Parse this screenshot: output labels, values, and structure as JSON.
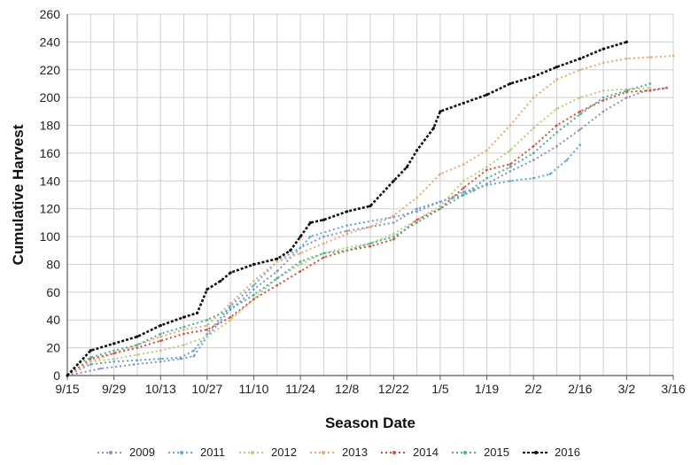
{
  "chart_data": {
    "type": "line",
    "title": "",
    "xlabel": "Season Date",
    "ylabel": "Cumulative Harvest",
    "x_tick_labels": [
      "9/15",
      "9/29",
      "10/13",
      "10/27",
      "11/10",
      "11/24",
      "12/8",
      "12/22",
      "1/5",
      "1/19",
      "2/2",
      "2/16",
      "3/2",
      "3/16"
    ],
    "x_tick_days": [
      0,
      14,
      28,
      42,
      56,
      70,
      84,
      98,
      112,
      126,
      140,
      154,
      168,
      182
    ],
    "xlim": [
      0,
      182
    ],
    "ylim": [
      0,
      260
    ],
    "y_ticks": [
      0,
      20,
      40,
      60,
      80,
      100,
      120,
      140,
      160,
      180,
      200,
      220,
      240,
      260
    ],
    "grid": true,
    "x_minor_grid_step_days": 7,
    "legend_position": "bottom",
    "series": [
      {
        "name": "2009",
        "color": "#8b8fc9",
        "dash": "2,3",
        "points": [
          [
            0,
            0
          ],
          [
            10,
            5
          ],
          [
            20,
            8
          ],
          [
            28,
            10
          ],
          [
            34,
            12
          ],
          [
            38,
            14
          ],
          [
            42,
            28
          ],
          [
            48,
            45
          ],
          [
            56,
            62
          ],
          [
            63,
            75
          ],
          [
            70,
            92
          ],
          [
            77,
            100
          ],
          [
            84,
            104
          ],
          [
            91,
            107
          ],
          [
            98,
            110
          ],
          [
            105,
            120
          ],
          [
            112,
            125
          ],
          [
            119,
            130
          ],
          [
            122,
            133
          ],
          [
            126,
            138
          ],
          [
            133,
            147
          ],
          [
            140,
            155
          ],
          [
            147,
            165
          ],
          [
            154,
            177
          ],
          [
            161,
            190
          ],
          [
            168,
            200
          ],
          [
            174,
            205
          ],
          [
            180,
            207
          ]
        ]
      },
      {
        "name": "2011",
        "color": "#5aa9d6",
        "dash": "2,3",
        "points": [
          [
            0,
            0
          ],
          [
            7,
            8
          ],
          [
            14,
            10
          ],
          [
            21,
            11
          ],
          [
            28,
            12
          ],
          [
            34,
            13
          ],
          [
            38,
            18
          ],
          [
            42,
            30
          ],
          [
            49,
            50
          ],
          [
            56,
            65
          ],
          [
            63,
            82
          ],
          [
            70,
            92
          ],
          [
            73,
            100
          ],
          [
            84,
            108
          ],
          [
            98,
            114
          ],
          [
            105,
            118
          ],
          [
            112,
            125
          ],
          [
            119,
            132
          ],
          [
            126,
            137
          ],
          [
            133,
            140
          ],
          [
            140,
            142
          ],
          [
            145,
            145
          ],
          [
            150,
            155
          ],
          [
            154,
            166
          ]
        ]
      },
      {
        "name": "2012",
        "color": "#b5cf72",
        "dash": "2,3",
        "points": [
          [
            0,
            0
          ],
          [
            7,
            10
          ],
          [
            14,
            12
          ],
          [
            21,
            15
          ],
          [
            28,
            18
          ],
          [
            35,
            22
          ],
          [
            42,
            28
          ],
          [
            49,
            40
          ],
          [
            56,
            55
          ],
          [
            63,
            70
          ],
          [
            70,
            80
          ],
          [
            77,
            88
          ],
          [
            84,
            92
          ],
          [
            91,
            95
          ],
          [
            98,
            102
          ],
          [
            105,
            112
          ],
          [
            112,
            122
          ],
          [
            119,
            140
          ],
          [
            126,
            150
          ],
          [
            133,
            162
          ],
          [
            140,
            178
          ],
          [
            147,
            192
          ],
          [
            154,
            200
          ],
          [
            161,
            205
          ],
          [
            168,
            206
          ],
          [
            175,
            207
          ]
        ]
      },
      {
        "name": "2013",
        "color": "#f0a868",
        "dash": "2,3",
        "points": [
          [
            0,
            0
          ],
          [
            7,
            10
          ],
          [
            14,
            16
          ],
          [
            21,
            22
          ],
          [
            28,
            28
          ],
          [
            35,
            33
          ],
          [
            42,
            36
          ],
          [
            49,
            52
          ],
          [
            56,
            68
          ],
          [
            63,
            82
          ],
          [
            70,
            88
          ],
          [
            77,
            95
          ],
          [
            84,
            102
          ],
          [
            91,
            107
          ],
          [
            98,
            115
          ],
          [
            105,
            128
          ],
          [
            112,
            145
          ],
          [
            119,
            152
          ],
          [
            126,
            162
          ],
          [
            133,
            180
          ],
          [
            140,
            200
          ],
          [
            147,
            213
          ],
          [
            154,
            220
          ],
          [
            161,
            225
          ],
          [
            168,
            228
          ],
          [
            175,
            229
          ],
          [
            182,
            230
          ]
        ]
      },
      {
        "name": "2014",
        "color": "#e04a3a",
        "dash": "2,3",
        "points": [
          [
            0,
            0
          ],
          [
            7,
            12
          ],
          [
            14,
            16
          ],
          [
            21,
            20
          ],
          [
            28,
            25
          ],
          [
            35,
            30
          ],
          [
            42,
            33
          ],
          [
            49,
            42
          ],
          [
            56,
            55
          ],
          [
            63,
            65
          ],
          [
            70,
            75
          ],
          [
            77,
            85
          ],
          [
            84,
            90
          ],
          [
            91,
            93
          ],
          [
            98,
            98
          ],
          [
            105,
            112
          ],
          [
            112,
            120
          ],
          [
            119,
            135
          ],
          [
            126,
            148
          ],
          [
            133,
            152
          ],
          [
            140,
            165
          ],
          [
            147,
            180
          ],
          [
            154,
            190
          ],
          [
            161,
            198
          ],
          [
            168,
            204
          ],
          [
            175,
            205
          ],
          [
            180,
            207
          ]
        ]
      },
      {
        "name": "2015",
        "color": "#3fb595",
        "dash": "2,3",
        "points": [
          [
            0,
            0
          ],
          [
            3,
            8
          ],
          [
            7,
            13
          ],
          [
            14,
            18
          ],
          [
            21,
            22
          ],
          [
            28,
            30
          ],
          [
            35,
            35
          ],
          [
            42,
            40
          ],
          [
            49,
            48
          ],
          [
            56,
            58
          ],
          [
            63,
            70
          ],
          [
            70,
            82
          ],
          [
            77,
            88
          ],
          [
            84,
            90
          ],
          [
            91,
            95
          ],
          [
            98,
            100
          ],
          [
            105,
            110
          ],
          [
            112,
            120
          ],
          [
            119,
            130
          ],
          [
            126,
            142
          ],
          [
            133,
            150
          ],
          [
            140,
            160
          ],
          [
            147,
            175
          ],
          [
            154,
            188
          ],
          [
            161,
            200
          ],
          [
            168,
            205
          ],
          [
            175,
            210
          ]
        ]
      },
      {
        "name": "2016",
        "color": "#111111",
        "dash": "3,2",
        "points": [
          [
            0,
            0
          ],
          [
            7,
            18
          ],
          [
            14,
            23
          ],
          [
            21,
            28
          ],
          [
            28,
            36
          ],
          [
            35,
            42
          ],
          [
            39,
            45
          ],
          [
            42,
            62
          ],
          [
            46,
            68
          ],
          [
            49,
            74
          ],
          [
            56,
            80
          ],
          [
            63,
            84
          ],
          [
            67,
            90
          ],
          [
            70,
            100
          ],
          [
            73,
            110
          ],
          [
            77,
            112
          ],
          [
            84,
            118
          ],
          [
            91,
            122
          ],
          [
            98,
            140
          ],
          [
            102,
            150
          ],
          [
            105,
            162
          ],
          [
            110,
            178
          ],
          [
            112,
            190
          ],
          [
            119,
            196
          ],
          [
            126,
            202
          ],
          [
            133,
            210
          ],
          [
            140,
            215
          ],
          [
            147,
            222
          ],
          [
            154,
            228
          ],
          [
            161,
            235
          ],
          [
            168,
            240
          ]
        ]
      }
    ]
  }
}
